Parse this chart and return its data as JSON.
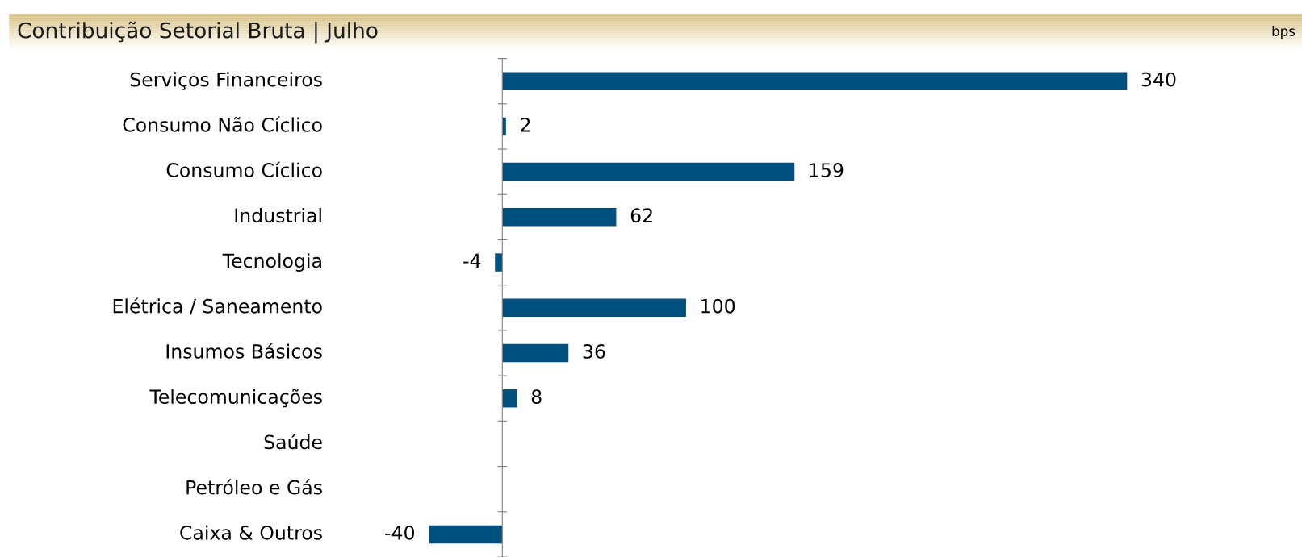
{
  "chart_data": {
    "type": "bar",
    "orientation": "horizontal",
    "title": "Contribuição Setorial Bruta | Julho",
    "annotations": [
      "bps"
    ],
    "categories": [
      "Serviços Financeiros",
      "Consumo Não Cíclico",
      "Consumo Cíclico",
      "Industrial",
      "Tecnologia",
      "Elétrica / Saneamento",
      "Insumos Básicos",
      "Telecomunicações",
      "Saúde",
      "Petróleo e Gás",
      "Caixa & Outros"
    ],
    "values": [
      340,
      2,
      159,
      62,
      -4,
      100,
      36,
      8,
      null,
      null,
      -40
    ],
    "value_labels": [
      "340",
      "2",
      "159",
      "62",
      "-4",
      "100",
      "36",
      "8",
      null,
      null,
      "-40"
    ],
    "color": "#00507f",
    "tick_labels": "y",
    "grid": false,
    "legend": false
  }
}
